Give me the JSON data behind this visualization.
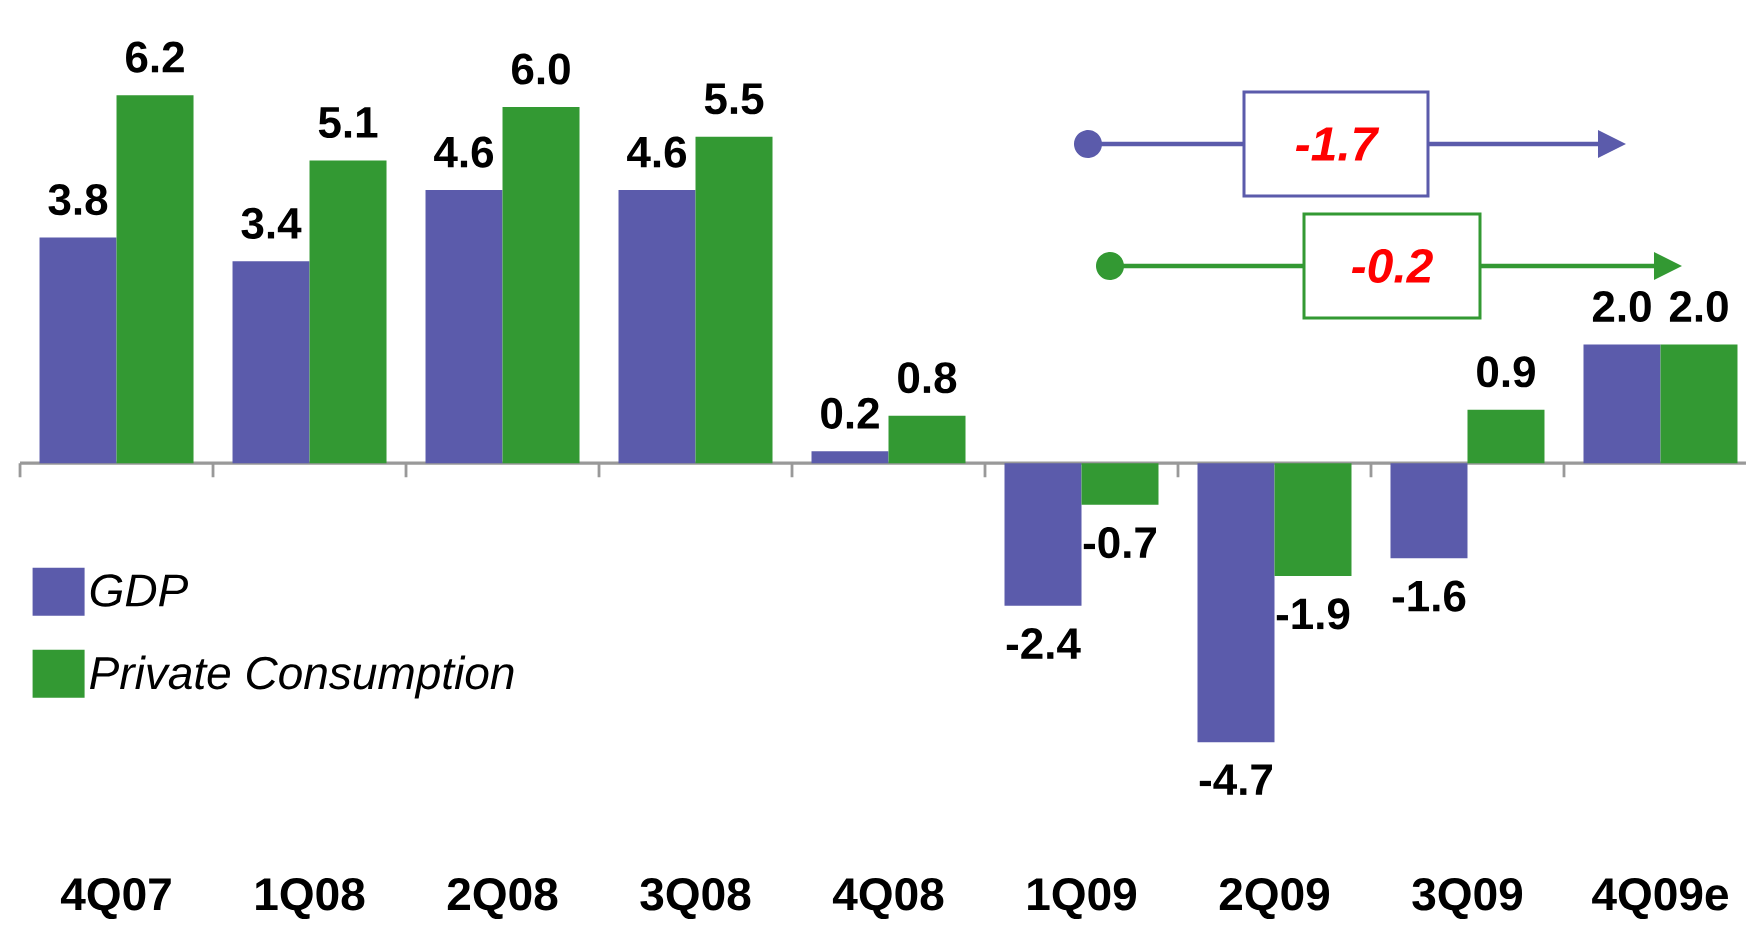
{
  "chart_data": {
    "type": "bar",
    "categories": [
      "4Q07",
      "1Q08",
      "2Q08",
      "3Q08",
      "4Q08",
      "1Q09",
      "2Q09",
      "3Q09",
      "4Q09e"
    ],
    "series": [
      {
        "name": "GDP",
        "color": "#5b5bab",
        "values": [
          3.8,
          3.4,
          4.6,
          4.6,
          0.2,
          -2.4,
          -4.7,
          -1.6,
          2.0
        ],
        "value_labels": [
          "3.8",
          "3.4",
          "4.6",
          "4.6",
          "0.2",
          "-2.4",
          "-4.7",
          "-1.6",
          "2.0"
        ]
      },
      {
        "name": "Private Consumption",
        "color": "#339933",
        "values": [
          6.2,
          5.1,
          6.0,
          5.5,
          0.8,
          -0.7,
          -1.9,
          0.9,
          2.0
        ],
        "value_labels": [
          "6.2",
          "5.1",
          "6.0",
          "5.5",
          "0.8",
          "-0.7",
          "-1.9",
          "0.9",
          "2.0"
        ]
      }
    ],
    "legend": "bottom left",
    "tick_labels": "x",
    "annotations": [
      "-1.7",
      "-0.2"
    ]
  }
}
